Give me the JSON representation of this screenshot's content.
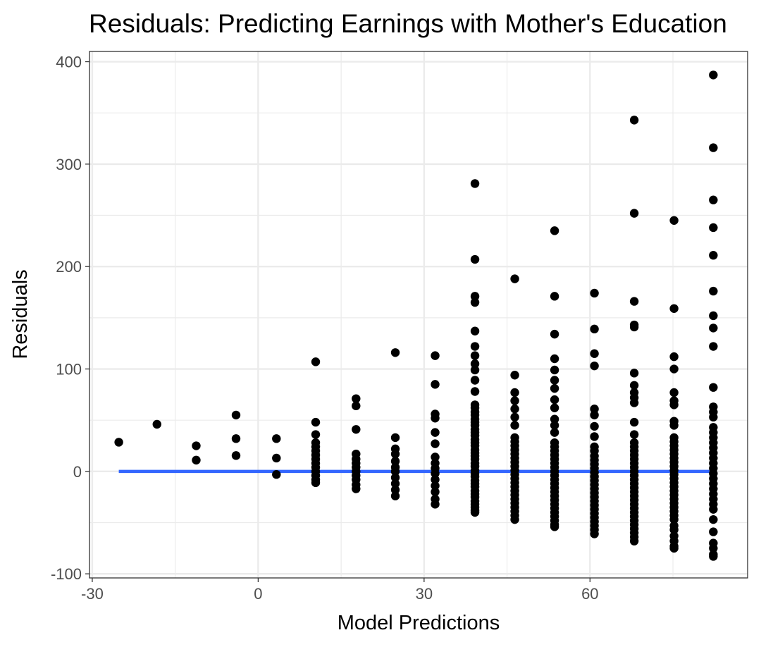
{
  "chart_data": {
    "type": "scatter",
    "title": "Residuals: Predicting Earnings with Mother's Education",
    "xlabel": "Model Predictions",
    "ylabel": "Residuals",
    "xlim": [
      -30.5,
      88.5
    ],
    "ylim": [
      -104,
      410
    ],
    "x_ticks": [
      -30,
      0,
      30,
      60
    ],
    "x_tick_labels": [
      "-30",
      "0",
      "30",
      "60"
    ],
    "y_ticks": [
      -100,
      0,
      100,
      200,
      300,
      400
    ],
    "y_tick_labels": [
      "-100",
      "0",
      "100",
      "200",
      "300",
      "400"
    ],
    "grid": true,
    "legend": "none",
    "colors": {
      "points": "#000000",
      "fit_line": "#3366ff",
      "grid": "#ebebeb",
      "panel_border": "#333333"
    },
    "series": [
      {
        "groups": [
          {
            "x": -25.2,
            "y": [
              28.5
            ]
          },
          {
            "x": -18.3,
            "y": [
              46
            ]
          },
          {
            "x": -11.2,
            "y": [
              25,
              11
            ]
          },
          {
            "x": -4.0,
            "y": [
              55,
              32,
              15.5
            ]
          },
          {
            "x": 3.3,
            "y": [
              32,
              13,
              -3
            ]
          },
          {
            "x": 10.4,
            "y": [
              107,
              48,
              36,
              28,
              24,
              20,
              16,
              12,
              8,
              4,
              0,
              -4,
              -8,
              -11
            ]
          },
          {
            "x": 17.7,
            "y": [
              71,
              64,
              41,
              17,
              12,
              8,
              4,
              0,
              -4,
              -8,
              -13,
              -17
            ]
          },
          {
            "x": 24.8,
            "y": [
              116,
              33,
              22,
              17,
              10,
              4,
              0,
              -6,
              -12,
              -18,
              -24
            ]
          },
          {
            "x": 32.0,
            "y": [
              113,
              85,
              56,
              52,
              38,
              27,
              14,
              8,
              3,
              -2,
              -8,
              -14,
              -20,
              -27,
              -32
            ]
          },
          {
            "x": 39.2,
            "y": [
              281,
              207,
              171,
              165,
              137,
              122,
              113,
              105,
              99,
              89,
              78,
              65,
              62,
              58,
              55,
              51,
              48,
              45,
              41,
              38,
              35,
              31,
              28,
              25,
              21,
              18,
              15,
              12,
              8,
              5,
              1,
              -2,
              -5,
              -9,
              -12,
              -15,
              -19,
              -22,
              -25,
              -29,
              -32,
              -35,
              -38,
              -40
            ]
          },
          {
            "x": 46.4,
            "y": [
              188,
              94,
              77,
              69,
              61,
              53,
              45,
              33,
              29,
              25,
              21,
              17,
              13,
              9,
              5,
              1,
              -3,
              -7,
              -11,
              -15,
              -19,
              -23,
              -27,
              -31,
              -35,
              -39,
              -43,
              -47
            ]
          },
          {
            "x": 53.6,
            "y": [
              235,
              171,
              134,
              110,
              99,
              89,
              81,
              70,
              62,
              51,
              45,
              38,
              28,
              24,
              20,
              16,
              12,
              8,
              4,
              0,
              -4,
              -8,
              -12,
              -16,
              -20,
              -24,
              -28,
              -32,
              -36,
              -40,
              -44,
              -48,
              -52,
              -54
            ]
          },
          {
            "x": 60.8,
            "y": [
              174,
              139,
              115,
              103,
              61,
              55,
              44,
              34,
              24,
              20,
              15,
              11,
              7,
              3,
              -1,
              -5,
              -9,
              -13,
              -17,
              -21,
              -25,
              -29,
              -33,
              -37,
              -41,
              -45,
              -49,
              -53,
              -57,
              -61
            ]
          },
          {
            "x": 68.0,
            "y": [
              343,
              252,
              166,
              143,
              141,
              96,
              84,
              77,
              72,
              67,
              48,
              36,
              28,
              24,
              20,
              16,
              12,
              8,
              4,
              0,
              -4,
              -8,
              -12,
              -16,
              -20,
              -24,
              -28,
              -32,
              -36,
              -40,
              -44,
              -48,
              -52,
              -56,
              -60,
              -64,
              -68
            ]
          },
          {
            "x": 75.2,
            "y": [
              245,
              159,
              112,
              100,
              77,
              69,
              65,
              49,
              45,
              33,
              29,
              25,
              21,
              17,
              13,
              9,
              5,
              1,
              -3,
              -7,
              -11,
              -15,
              -19,
              -23,
              -27,
              -31,
              -35,
              -39,
              -43,
              -47,
              -53,
              -57,
              -63,
              -68,
              -73,
              -75
            ]
          },
          {
            "x": 82.3,
            "y": [
              387,
              316,
              265,
              238,
              211,
              176,
              152,
              140,
              122,
              82,
              63,
              58,
              53,
              43,
              38,
              33,
              28,
              23,
              18,
              13,
              8,
              3,
              -2,
              -7,
              -12,
              -17,
              -22,
              -27,
              -32,
              -37,
              -47,
              -59,
              -70,
              -75,
              -81,
              -83
            ]
          }
        ]
      }
    ],
    "fit_line": {
      "x": [
        -25.2,
        82.3
      ],
      "y": [
        0,
        0
      ]
    }
  }
}
